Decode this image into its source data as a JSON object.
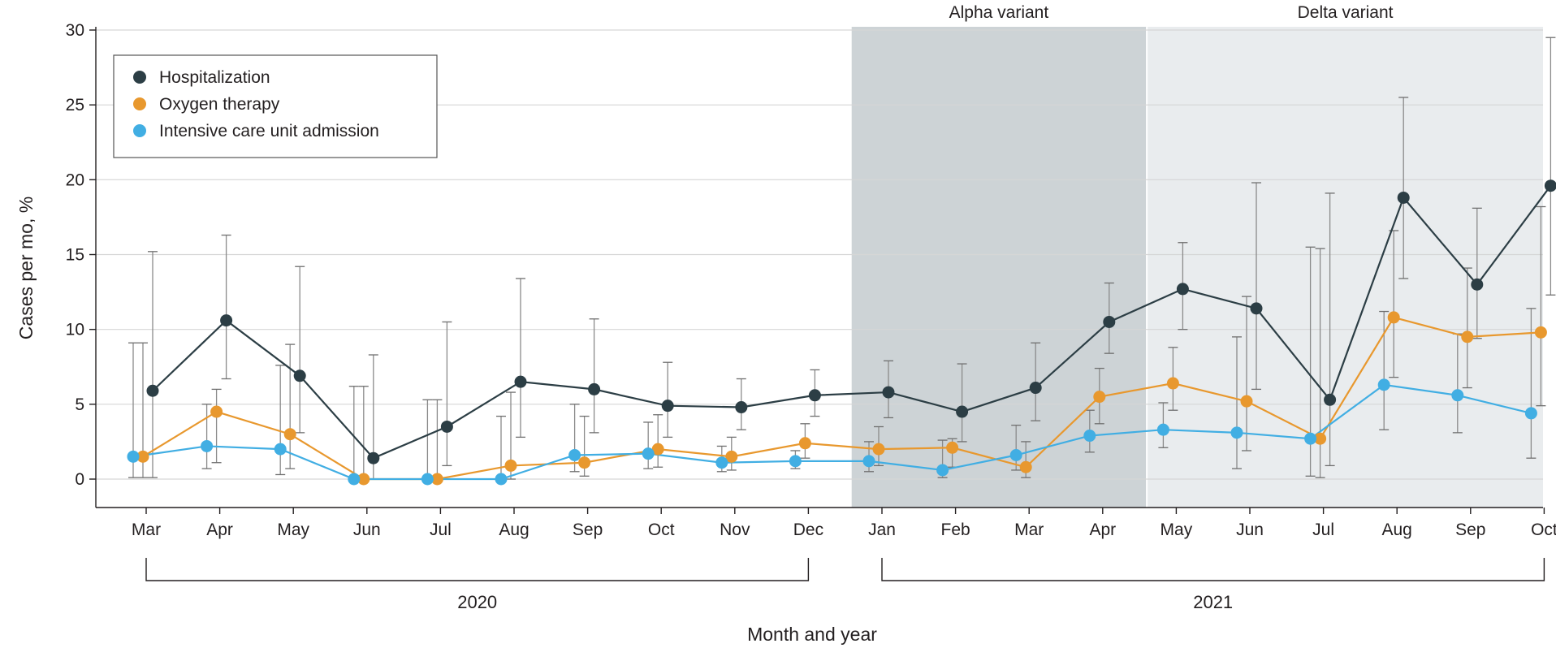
{
  "chart_data": {
    "type": "line",
    "xlabel": "Month and year",
    "ylabel": "Cases per mo, %",
    "ylim": [
      0,
      30
    ],
    "yticks": [
      0,
      5,
      10,
      15,
      20,
      25,
      30
    ],
    "grid": "horizontal",
    "legend_position": "top-left",
    "categories": [
      "Mar",
      "Apr",
      "May",
      "Jun",
      "Jul",
      "Aug",
      "Sep",
      "Oct",
      "Nov",
      "Dec",
      "Jan",
      "Feb",
      "Mar",
      "Apr",
      "May",
      "Jun",
      "Jul",
      "Aug",
      "Sep",
      "Oct"
    ],
    "year_groups": [
      {
        "label": "2020",
        "from": "Mar",
        "to": "Dec"
      },
      {
        "label": "2021",
        "from": "Jan",
        "to": "Oct"
      }
    ],
    "shaded_periods": [
      {
        "label": "Alpha variant",
        "from_month": "Jan 2021",
        "to_month": "May 2021",
        "color": "#cdd3d6"
      },
      {
        "label": "Delta variant",
        "from_month": "May 2021",
        "to_month": "Oct 2021",
        "color": "#e9ecee"
      }
    ],
    "series": [
      {
        "name": "Hospitalization",
        "color": "#2c3e45",
        "values": [
          5.9,
          10.6,
          6.9,
          1.4,
          3.5,
          6.5,
          6.0,
          4.9,
          4.8,
          5.6,
          5.8,
          4.5,
          6.1,
          10.5,
          12.7,
          11.4,
          5.3,
          18.8,
          13.0,
          19.6
        ],
        "error_low": [
          0.1,
          6.7,
          3.1,
          0.0,
          0.9,
          2.8,
          3.1,
          2.8,
          3.3,
          4.2,
          4.1,
          2.5,
          3.9,
          8.4,
          10.0,
          6.0,
          0.9,
          13.4,
          9.4,
          12.3
        ],
        "error_high": [
          15.2,
          16.3,
          14.2,
          8.3,
          10.5,
          13.4,
          10.7,
          7.8,
          6.7,
          7.3,
          7.9,
          7.7,
          9.1,
          13.1,
          15.8,
          19.8,
          19.1,
          25.5,
          18.1,
          29.5
        ]
      },
      {
        "name": "Oxygen therapy",
        "color": "#e8982e",
        "values": [
          1.5,
          4.5,
          3.0,
          0.0,
          0.0,
          0.9,
          1.1,
          2.0,
          1.5,
          2.4,
          2.0,
          2.1,
          0.8,
          5.5,
          6.4,
          5.2,
          2.7,
          10.8,
          9.5,
          9.8
        ],
        "error_low": [
          0.1,
          1.1,
          0.7,
          0.0,
          0.0,
          0.0,
          0.2,
          0.8,
          0.6,
          1.4,
          0.9,
          0.8,
          0.1,
          3.7,
          4.6,
          1.9,
          0.1,
          6.8,
          6.1,
          4.9
        ],
        "error_high": [
          9.1,
          6.0,
          9.0,
          6.2,
          5.3,
          5.8,
          4.2,
          4.3,
          2.8,
          3.7,
          3.5,
          2.7,
          2.5,
          7.4,
          8.8,
          12.2,
          15.4,
          16.6,
          14.1,
          18.2
        ]
      },
      {
        "name": "Intensive care unit admission",
        "color": "#41aee3",
        "values": [
          1.5,
          2.2,
          2.0,
          0.0,
          0.0,
          0.0,
          1.6,
          1.7,
          1.1,
          1.2,
          1.2,
          0.6,
          1.6,
          2.9,
          3.3,
          3.1,
          2.7,
          6.3,
          5.6,
          4.4
        ],
        "error_low": [
          0.1,
          0.7,
          0.3,
          0.0,
          0.0,
          0.0,
          0.5,
          0.7,
          0.5,
          0.7,
          0.5,
          0.1,
          0.6,
          1.8,
          2.1,
          0.7,
          0.2,
          3.3,
          3.1,
          1.4
        ],
        "error_high": [
          9.1,
          5.0,
          7.6,
          6.2,
          5.3,
          4.2,
          5.0,
          3.8,
          2.2,
          1.9,
          2.5,
          2.6,
          3.6,
          4.6,
          5.1,
          9.5,
          15.5,
          11.2,
          9.7,
          11.4
        ]
      }
    ]
  }
}
